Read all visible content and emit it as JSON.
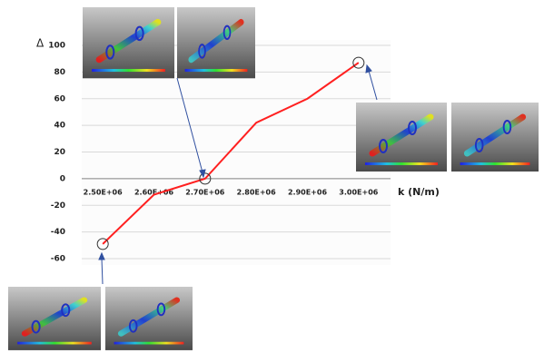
{
  "chart_data": {
    "type": "line",
    "y_label": "Δ",
    "x_label": "k (N/m)",
    "categories": [
      "2.50E+06",
      "2.60E+06",
      "2.70E+06",
      "2.80E+06",
      "2.90E+06",
      "3.00E+06"
    ],
    "values": [
      -49,
      -12,
      0,
      42,
      60,
      87
    ],
    "color": "#ff2020",
    "ylim": [
      -60,
      100
    ],
    "yticks": [
      -60,
      -40,
      -20,
      0,
      20,
      40,
      60,
      80,
      100
    ],
    "grid": true
  }
}
